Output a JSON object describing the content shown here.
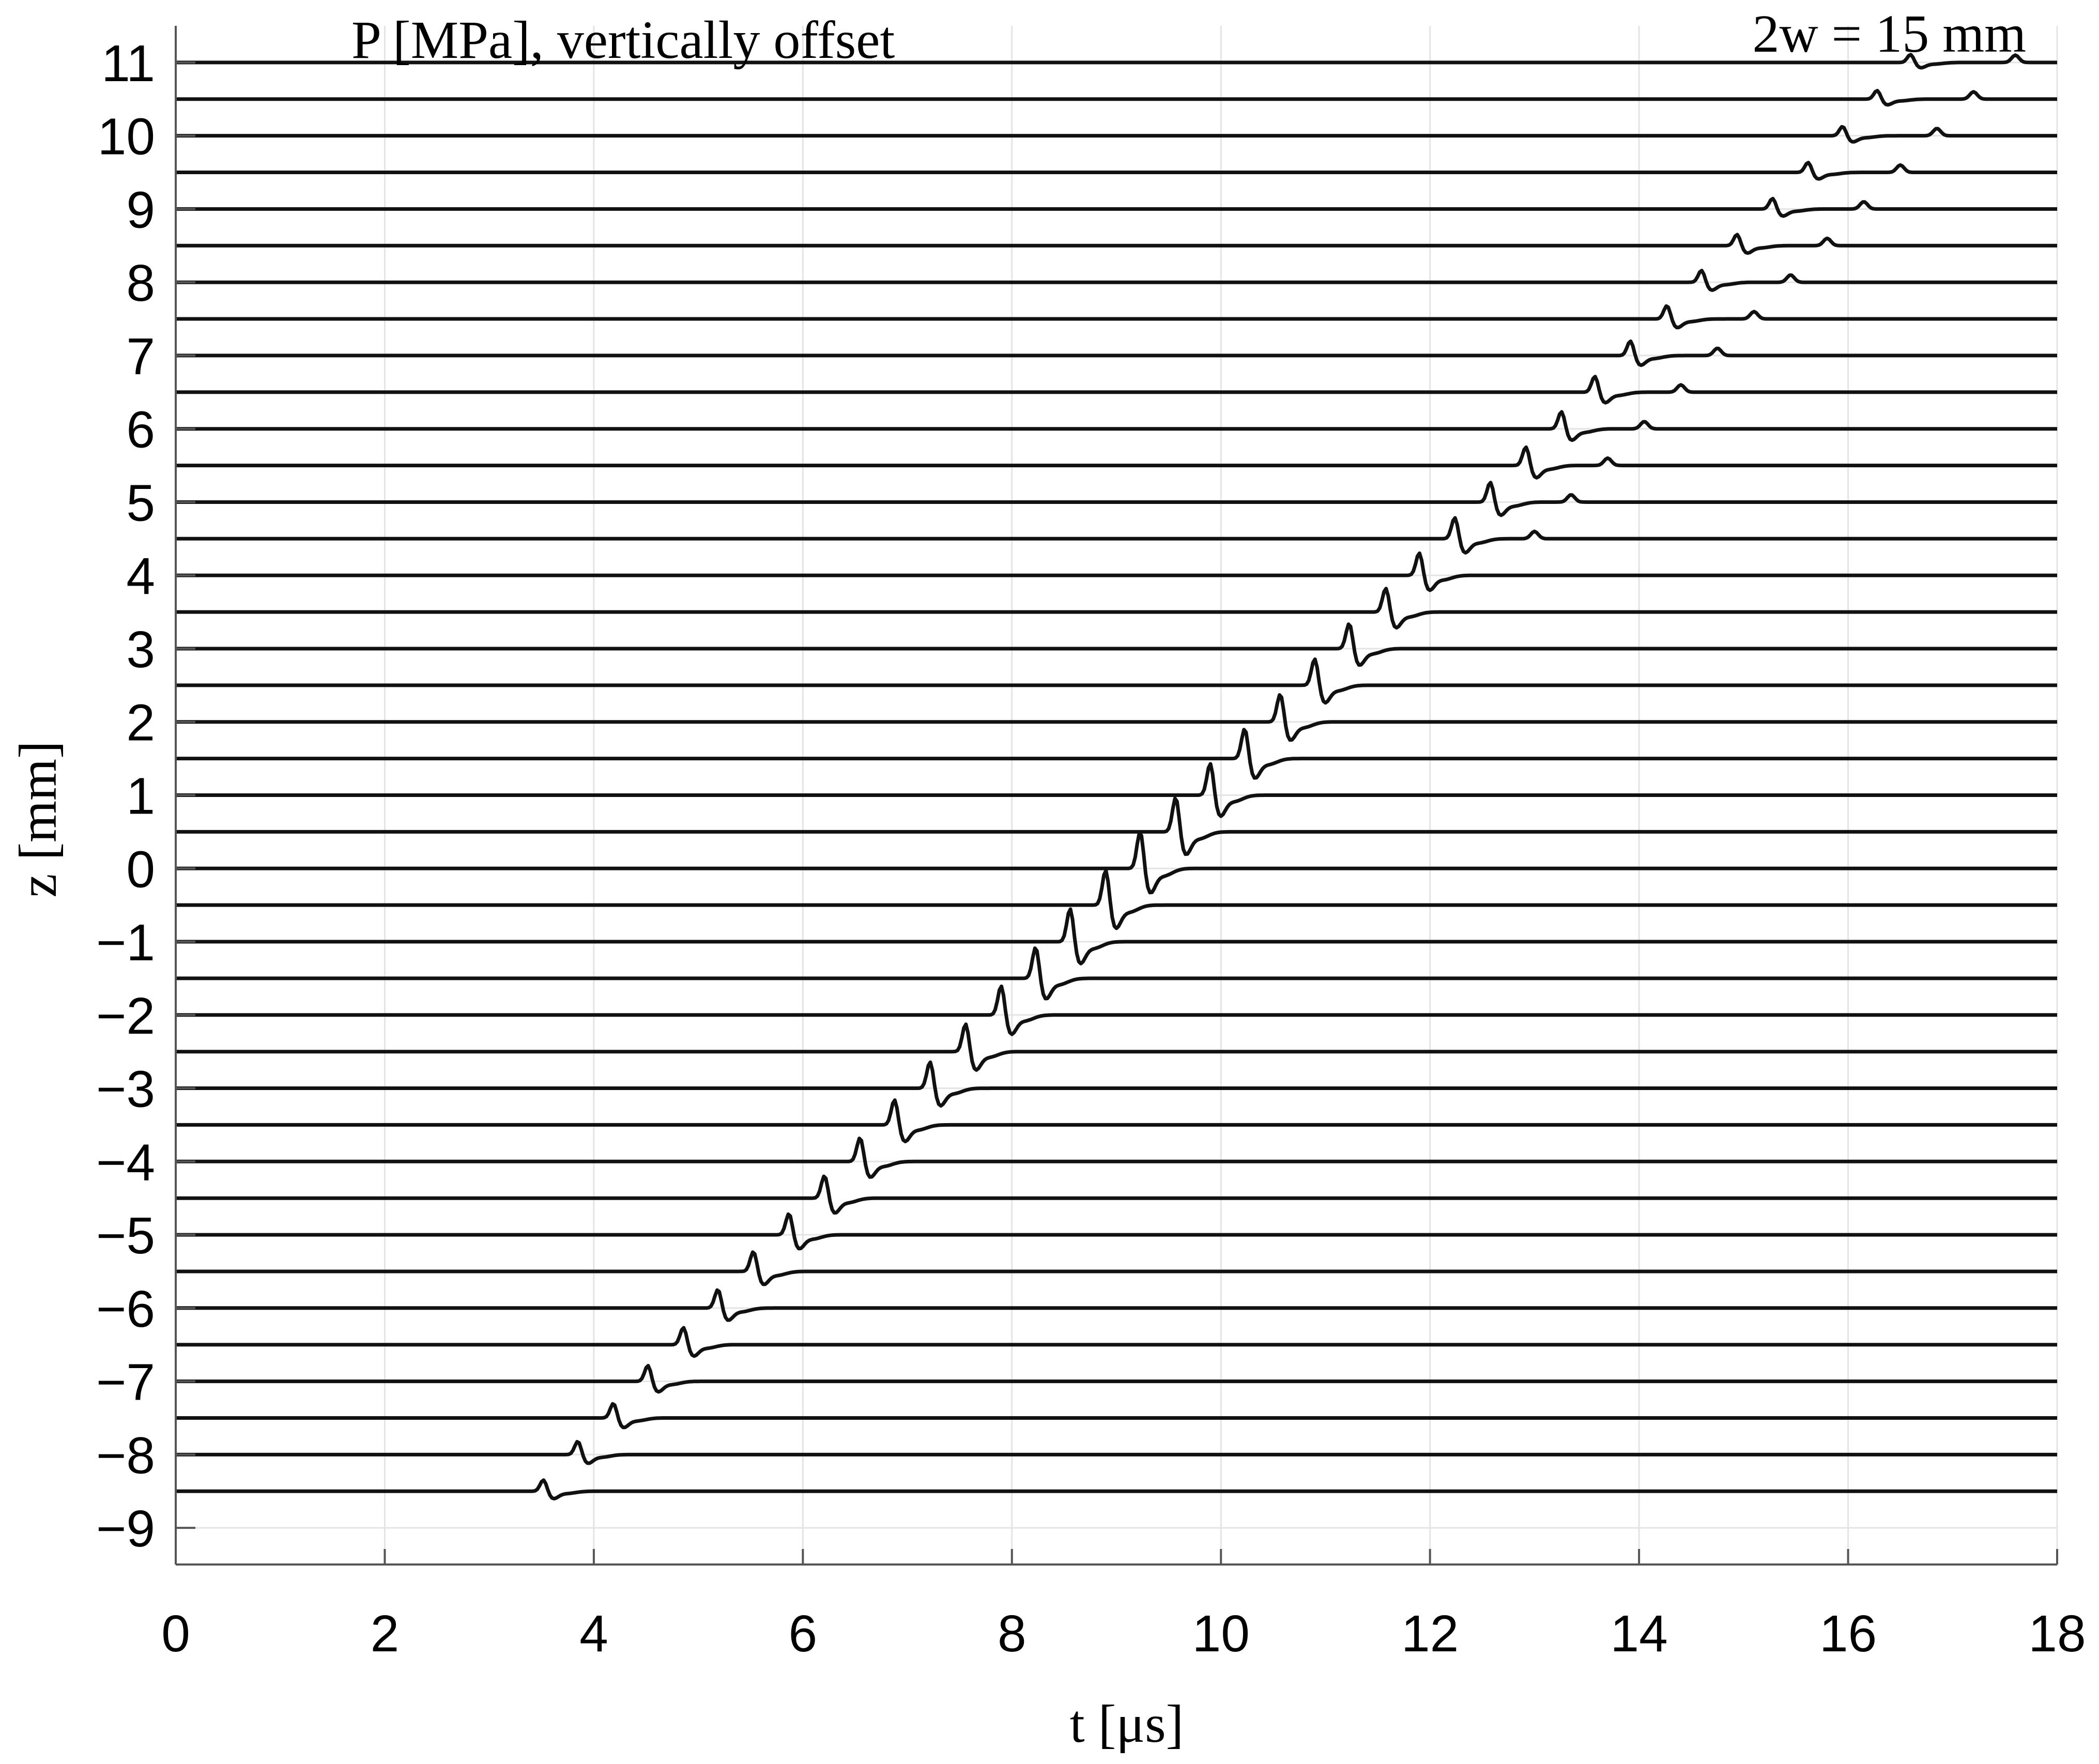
{
  "chart_data": {
    "type": "line",
    "annotation_left": "P [MPa], vertically offset",
    "annotation_right": "2w = 15 mm",
    "xlabel": "t [μs]",
    "ylabel": "z [mm]",
    "xlim": [
      0,
      18
    ],
    "ylim": [
      -9.5,
      11.5
    ],
    "xticks": [
      0,
      2,
      4,
      6,
      8,
      10,
      12,
      14,
      16,
      18
    ],
    "xtick_labels": [
      "0",
      "2",
      "4",
      "6",
      "8",
      "10",
      "12",
      "14",
      "16",
      "18"
    ],
    "yticks": [
      -9,
      -8,
      -7,
      -6,
      -5,
      -4,
      -3,
      -2,
      -1,
      0,
      1,
      2,
      3,
      4,
      5,
      6,
      7,
      8,
      9,
      10,
      11
    ],
    "ytick_labels": [
      "-9",
      "-8",
      "-7",
      "-6",
      "-5",
      "-4",
      "-3",
      "-2",
      "-1",
      "0",
      "1",
      "2",
      "3",
      "4",
      "5",
      "6",
      "7",
      "8",
      "9",
      "10",
      "11"
    ],
    "grid": true,
    "trace_start_t": 0,
    "trace_end_t": 18,
    "series": [
      {
        "z": -8.5,
        "pulse_t": 3.52,
        "amplitude": 0.17,
        "echo_t": null
      },
      {
        "z": -8.0,
        "pulse_t": 3.85,
        "amplitude": 0.2,
        "echo_t": null
      },
      {
        "z": -7.5,
        "pulse_t": 4.19,
        "amplitude": 0.22,
        "echo_t": null
      },
      {
        "z": -7.0,
        "pulse_t": 4.52,
        "amplitude": 0.24,
        "echo_t": null
      },
      {
        "z": -6.5,
        "pulse_t": 4.86,
        "amplitude": 0.26,
        "echo_t": null
      },
      {
        "z": -6.0,
        "pulse_t": 5.19,
        "amplitude": 0.28,
        "echo_t": null
      },
      {
        "z": -5.5,
        "pulse_t": 5.53,
        "amplitude": 0.3,
        "echo_t": null
      },
      {
        "z": -5.0,
        "pulse_t": 5.87,
        "amplitude": 0.32,
        "echo_t": null
      },
      {
        "z": -4.5,
        "pulse_t": 6.21,
        "amplitude": 0.34,
        "echo_t": null
      },
      {
        "z": -4.0,
        "pulse_t": 6.55,
        "amplitude": 0.36,
        "echo_t": null
      },
      {
        "z": -3.5,
        "pulse_t": 6.88,
        "amplitude": 0.38,
        "echo_t": null
      },
      {
        "z": -3.0,
        "pulse_t": 7.22,
        "amplitude": 0.4,
        "echo_t": null
      },
      {
        "z": -2.5,
        "pulse_t": 7.56,
        "amplitude": 0.42,
        "echo_t": null
      },
      {
        "z": -2.0,
        "pulse_t": 7.9,
        "amplitude": 0.44,
        "echo_t": null
      },
      {
        "z": -1.5,
        "pulse_t": 8.23,
        "amplitude": 0.47,
        "echo_t": null
      },
      {
        "z": -1.0,
        "pulse_t": 8.56,
        "amplitude": 0.5,
        "echo_t": null
      },
      {
        "z": -0.5,
        "pulse_t": 8.9,
        "amplitude": 0.53,
        "echo_t": null
      },
      {
        "z": 0.0,
        "pulse_t": 9.23,
        "amplitude": 0.56,
        "echo_t": null
      },
      {
        "z": 0.5,
        "pulse_t": 9.57,
        "amplitude": 0.52,
        "echo_t": null
      },
      {
        "z": 1.0,
        "pulse_t": 9.9,
        "amplitude": 0.48,
        "echo_t": null
      },
      {
        "z": 1.5,
        "pulse_t": 10.23,
        "amplitude": 0.45,
        "echo_t": null
      },
      {
        "z": 2.0,
        "pulse_t": 10.57,
        "amplitude": 0.42,
        "echo_t": null
      },
      {
        "z": 2.5,
        "pulse_t": 10.9,
        "amplitude": 0.4,
        "echo_t": null
      },
      {
        "z": 3.0,
        "pulse_t": 11.23,
        "amplitude": 0.38,
        "echo_t": null
      },
      {
        "z": 3.5,
        "pulse_t": 11.58,
        "amplitude": 0.36,
        "echo_t": null
      },
      {
        "z": 4.0,
        "pulse_t": 11.9,
        "amplitude": 0.34,
        "echo_t": null
      },
      {
        "z": 4.5,
        "pulse_t": 12.24,
        "amplitude": 0.32,
        "echo_t": 13.0
      },
      {
        "z": 5.0,
        "pulse_t": 12.58,
        "amplitude": 0.3,
        "echo_t": 13.35
      },
      {
        "z": 5.5,
        "pulse_t": 12.92,
        "amplitude": 0.28,
        "echo_t": 13.7
      },
      {
        "z": 6.0,
        "pulse_t": 13.26,
        "amplitude": 0.26,
        "echo_t": 14.05
      },
      {
        "z": 6.5,
        "pulse_t": 13.58,
        "amplitude": 0.24,
        "echo_t": 14.4
      },
      {
        "z": 7.0,
        "pulse_t": 13.92,
        "amplitude": 0.22,
        "echo_t": 14.75
      },
      {
        "z": 7.5,
        "pulse_t": 14.27,
        "amplitude": 0.2,
        "echo_t": 15.1
      },
      {
        "z": 8.0,
        "pulse_t": 14.6,
        "amplitude": 0.18,
        "echo_t": 15.45
      },
      {
        "z": 8.5,
        "pulse_t": 14.94,
        "amplitude": 0.17,
        "echo_t": 15.8
      },
      {
        "z": 9.0,
        "pulse_t": 15.28,
        "amplitude": 0.16,
        "echo_t": 16.15
      },
      {
        "z": 9.5,
        "pulse_t": 15.62,
        "amplitude": 0.15,
        "echo_t": 16.5
      },
      {
        "z": 10.0,
        "pulse_t": 15.95,
        "amplitude": 0.14,
        "echo_t": 16.85
      },
      {
        "z": 10.5,
        "pulse_t": 16.28,
        "amplitude": 0.13,
        "echo_t": 17.2
      },
      {
        "z": 11.0,
        "pulse_t": 16.6,
        "amplitude": 0.12,
        "echo_t": 17.6
      }
    ]
  }
}
